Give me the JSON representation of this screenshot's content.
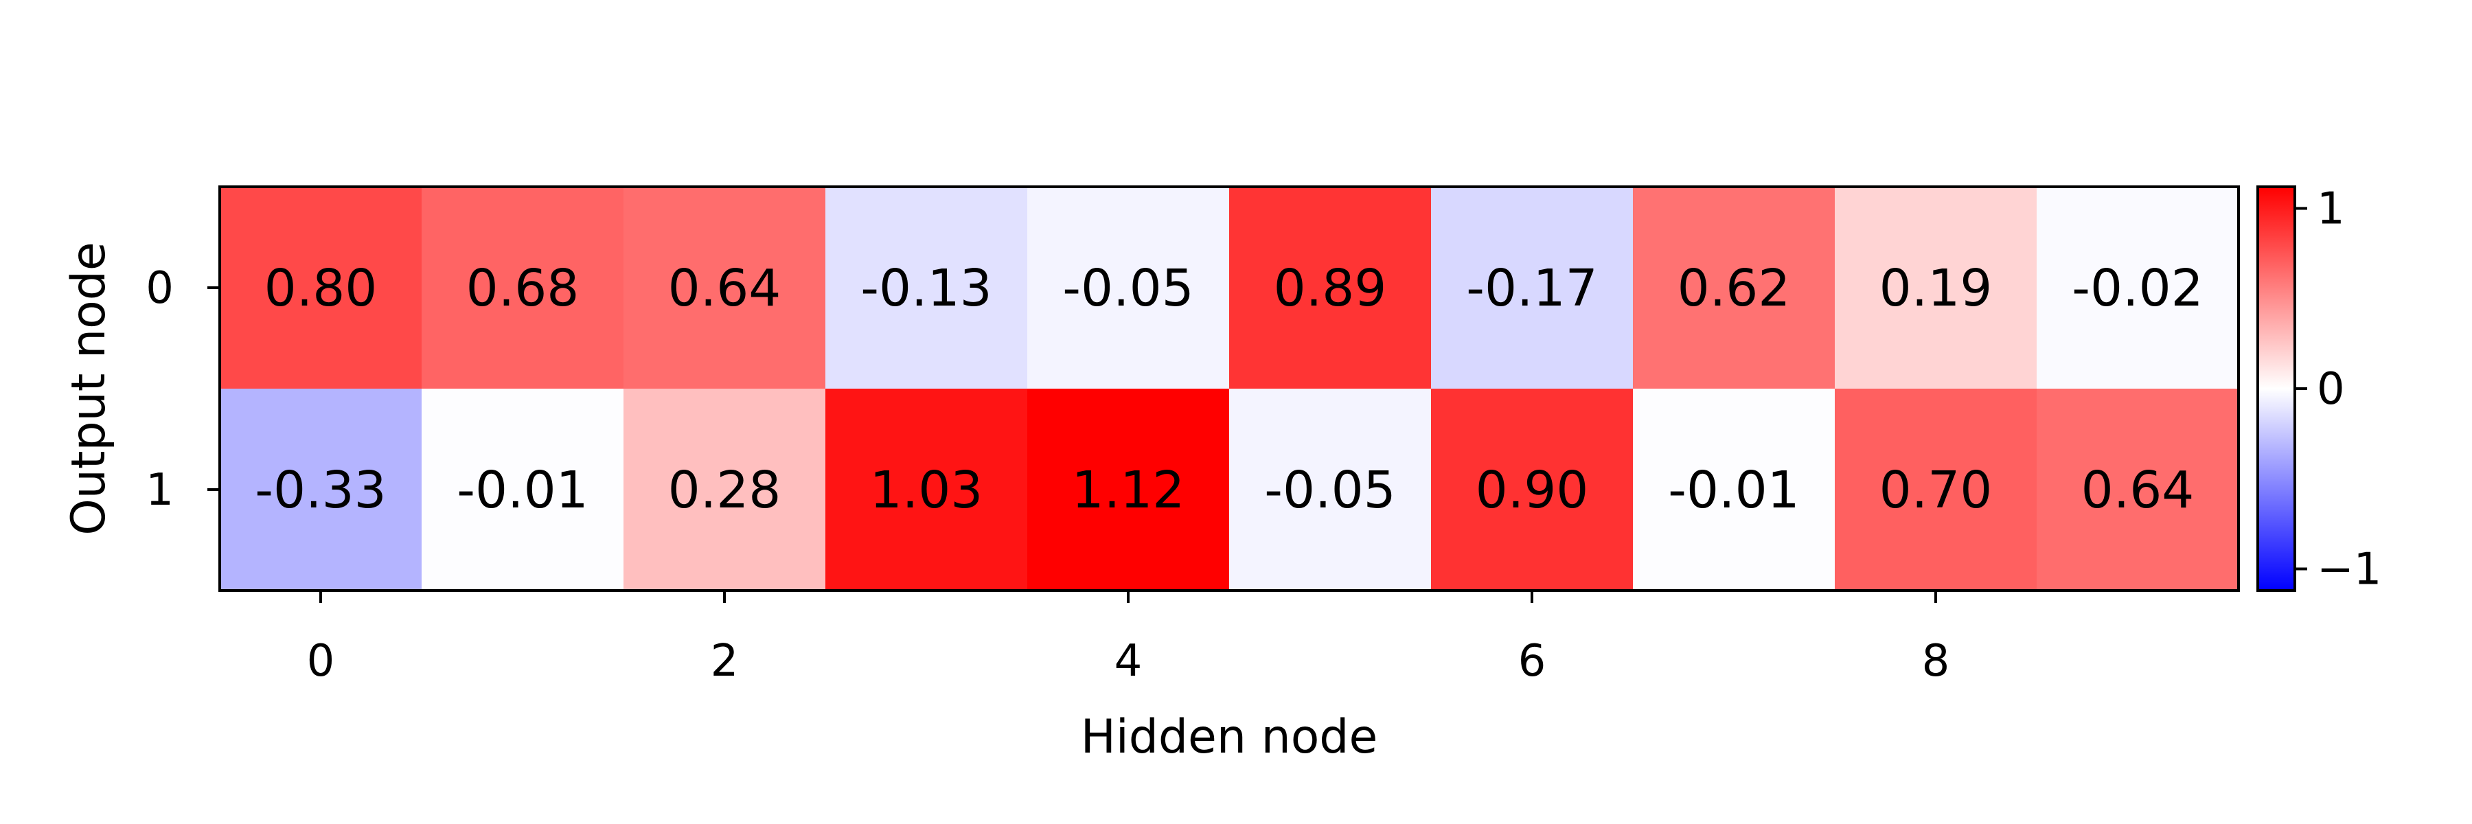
{
  "chart_data": {
    "type": "heatmap",
    "title": "",
    "xlabel": "Hidden node",
    "ylabel": "Output node",
    "rows": [
      0,
      1
    ],
    "columns": [
      0,
      1,
      2,
      3,
      4,
      5,
      6,
      7,
      8,
      9
    ],
    "x_ticks": [
      "0",
      "2",
      "4",
      "6",
      "8"
    ],
    "y_ticks": [
      "0",
      "1"
    ],
    "values": [
      [
        0.8,
        0.68,
        0.64,
        -0.13,
        -0.05,
        0.89,
        -0.17,
        0.62,
        0.19,
        -0.02
      ],
      [
        -0.33,
        -0.01,
        0.28,
        1.03,
        1.12,
        -0.05,
        0.9,
        -0.01,
        0.7,
        0.64
      ]
    ],
    "cell_labels": [
      [
        "0.80",
        "0.68",
        "0.64",
        "-0.13",
        "-0.05",
        "0.89",
        "-0.17",
        "0.62",
        "0.19",
        "-0.02"
      ],
      [
        "-0.33",
        "-0.01",
        "0.28",
        "1.03",
        "1.12",
        "-0.05",
        "0.90",
        "-0.01",
        "0.70",
        "0.64"
      ]
    ],
    "colormap": "bwr",
    "color_range": [
      -1.12,
      1.12
    ],
    "colorbar_ticks": [
      "1",
      "0",
      "−1"
    ],
    "colorbar_tick_values": [
      1,
      0,
      -1
    ],
    "colors": {
      "negative": "#0000ff",
      "zero": "#ffffff",
      "positive": "#ff0000"
    }
  }
}
